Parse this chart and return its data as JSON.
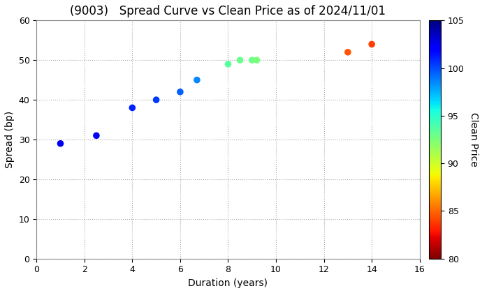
{
  "title": "(9003)   Spread Curve vs Clean Price as of 2024/11/01",
  "xlabel": "Duration (years)",
  "ylabel": "Spread (bp)",
  "colorbar_label": "Clean Price",
  "xlim": [
    0,
    16
  ],
  "ylim": [
    0,
    60
  ],
  "cmap_min": 80,
  "cmap_max": 105,
  "points": [
    {
      "duration": 1.0,
      "spread": 29,
      "price": 102.5
    },
    {
      "duration": 2.5,
      "spread": 31,
      "price": 101.8
    },
    {
      "duration": 4.0,
      "spread": 38,
      "price": 101.0
    },
    {
      "duration": 5.0,
      "spread": 40,
      "price": 100.5
    },
    {
      "duration": 6.0,
      "spread": 42,
      "price": 99.5
    },
    {
      "duration": 6.7,
      "spread": 45,
      "price": 98.5
    },
    {
      "duration": 8.0,
      "spread": 49,
      "price": 93.5
    },
    {
      "duration": 8.5,
      "spread": 50,
      "price": 93.0
    },
    {
      "duration": 9.0,
      "spread": 50,
      "price": 92.8
    },
    {
      "duration": 9.2,
      "spread": 50,
      "price": 92.5
    },
    {
      "duration": 13.0,
      "spread": 52,
      "price": 84.5
    },
    {
      "duration": 14.0,
      "spread": 54,
      "price": 84.0
    }
  ],
  "background_color": "#ffffff",
  "grid_color": "#aaaaaa",
  "title_fontsize": 12,
  "label_fontsize": 10,
  "tick_fontsize": 9,
  "marker_size": 35,
  "figsize": [
    7.2,
    4.2
  ],
  "dpi": 100
}
